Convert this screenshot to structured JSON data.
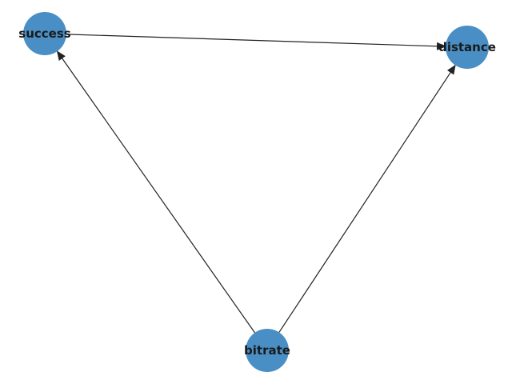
{
  "graph": {
    "node_color": "#3a86c0",
    "edge_color": "#222222",
    "nodes": [
      {
        "id": "success",
        "label": "success"
      },
      {
        "id": "distance",
        "label": "distance"
      },
      {
        "id": "bitrate",
        "label": "bitrate"
      }
    ],
    "edges": [
      {
        "from": "success",
        "to": "distance"
      },
      {
        "from": "bitrate",
        "to": "success"
      },
      {
        "from": "bitrate",
        "to": "distance"
      }
    ]
  }
}
